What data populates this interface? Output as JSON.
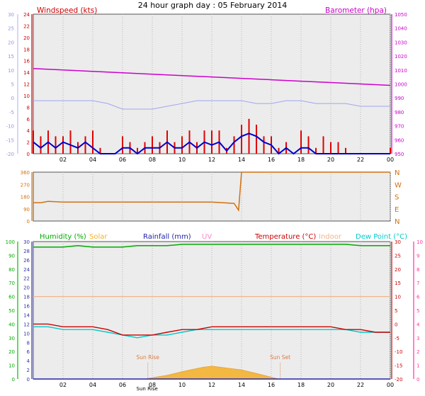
{
  "chart_data": {
    "title": "24 hour graph day : 05 February 2014",
    "x_ticks": [
      "02",
      "04",
      "06",
      "08",
      "10",
      "12",
      "14",
      "16",
      "18",
      "20",
      "22",
      "00"
    ],
    "panels": [
      {
        "id": "wind-baro",
        "type": "line",
        "labels": {
          "windspeed": "Windspeed (kts)",
          "barometer": "Barometer (hpa)"
        },
        "axes": {
          "wind_left": {
            "min": 0,
            "max": 24,
            "ticks": [
              0,
              2,
              4,
              6,
              8,
              10,
              12,
              14,
              16,
              18,
              20,
              22,
              24
            ]
          },
          "temp_outer_left": {
            "min": -20,
            "max": 30,
            "ticks": [
              -20,
              -15,
              -10,
              -5,
              0,
              5,
              10,
              15,
              20,
              25,
              30
            ]
          },
          "baro_right": {
            "min": 950,
            "max": 1050,
            "ticks": [
              950,
              960,
              970,
              980,
              990,
              1000,
              1010,
              1020,
              1030,
              1040,
              1050
            ]
          }
        },
        "series": [
          {
            "name": "Windspeed (kts)",
            "color": "#e00000",
            "style": "bars",
            "x": [
              0,
              0.5,
              1,
              1.5,
              2,
              2.5,
              3,
              3.5,
              4,
              4.5,
              5,
              5.5,
              6,
              6.5,
              7,
              7.5,
              8,
              8.5,
              9,
              9.5,
              10,
              10.5,
              11,
              11.5,
              12,
              12.5,
              13,
              13.5,
              14,
              14.5,
              15,
              15.5,
              16,
              16.5,
              17,
              17.5,
              18,
              18.5,
              19,
              19.5,
              20,
              20.5,
              21,
              21.5,
              22,
              22.5,
              23,
              23.5,
              24
            ],
            "y": [
              4,
              3,
              4,
              3,
              3,
              4,
              2,
              3,
              4,
              1,
              0,
              0,
              3,
              2,
              1,
              2,
              3,
              2,
              4,
              2,
              3,
              4,
              2,
              4,
              4,
              4,
              1,
              3,
              5,
              6,
              5,
              3,
              3,
              1,
              2,
              0,
              4,
              3,
              1,
              3,
              2,
              2,
              1,
              0,
              0,
              0,
              0,
              0,
              1
            ]
          },
          {
            "name": "Wind average",
            "color": "#0000cc",
            "style": "line",
            "x": [
              0,
              0.5,
              1,
              1.5,
              2,
              2.5,
              3,
              3.5,
              4,
              4.5,
              5,
              5.5,
              6,
              6.5,
              7,
              7.5,
              8,
              8.5,
              9,
              9.5,
              10,
              10.5,
              11,
              11.5,
              12,
              12.5,
              13,
              13.5,
              14,
              14.5,
              15,
              15.5,
              16,
              16.5,
              17,
              17.5,
              18,
              18.5,
              19,
              19.5,
              20,
              20.5,
              21,
              21.5,
              22,
              22.5,
              23,
              23.5,
              24
            ],
            "y": [
              2,
              1,
              2,
              1,
              2,
              1.5,
              1,
              2,
              1,
              0,
              0,
              0,
              1,
              1,
              0,
              1,
              1,
              1,
              2,
              1,
              1,
              2,
              1,
              2,
              1.5,
              2,
              0.5,
              2,
              3,
              3.5,
              3,
              2,
              1.5,
              0,
              1,
              0,
              1,
              1,
              0,
              0,
              0,
              0,
              0,
              0,
              0,
              0,
              0,
              0,
              0
            ]
          },
          {
            "name": "Barometer (hpa)",
            "color": "#cc00cc",
            "axis": "baro_right",
            "x": [
              0,
              2,
              4,
              6,
              8,
              10,
              12,
              14,
              16,
              18,
              20,
              22,
              24
            ],
            "y": [
              1011,
              1010,
              1009,
              1008,
              1007,
              1006,
              1005,
              1004,
              1003,
              1002,
              1001,
              1000,
              999
            ]
          },
          {
            "name": "Temperature outer scale",
            "color": "#9fa6ee",
            "axis": "temp_outer_left",
            "x": [
              0,
              1,
              2,
              3,
              4,
              5,
              6,
              7,
              8,
              9,
              10,
              11,
              12,
              13,
              14,
              15,
              16,
              17,
              18,
              19,
              20,
              21,
              22,
              23,
              24
            ],
            "y": [
              -1,
              -1,
              -1,
              -1,
              -1,
              -2,
              -4,
              -4,
              -4,
              -3,
              -2,
              -1,
              -1,
              -1,
              -1,
              -2,
              -2,
              -1,
              -1,
              -2,
              -2,
              -2,
              -3,
              -3,
              -3
            ]
          }
        ]
      },
      {
        "id": "wind-direction",
        "type": "line",
        "axes": {
          "dir_left": {
            "min": 0,
            "max": 360,
            "ticks": [
              0,
              90,
              180,
              270,
              360
            ]
          },
          "compass_right": [
            "N",
            "W",
            "S",
            "E",
            "N"
          ]
        },
        "series": [
          {
            "name": "Wind direction",
            "color": "#d4700e",
            "x": [
              0,
              0.5,
              1,
              2,
              4,
              6,
              8,
              10,
              12,
              13.5,
              13.8,
              14,
              24
            ],
            "y": [
              135,
              135,
              145,
              140,
              140,
              140,
              140,
              140,
              140,
              130,
              80,
              360,
              360
            ]
          }
        ]
      },
      {
        "id": "multi",
        "type": "line",
        "labels": {
          "humidity": "Humidity (%)",
          "solar": "Solar",
          "rainfall": "Rainfall (mm)",
          "uv": "UV",
          "temperature": "Temperature (°C)",
          "indoor": "Indoor",
          "dewpoint": "Dew Point (°C)",
          "sunrise": "Sun Rise",
          "sunset": "Sun Set",
          "sunrise_time": "Sun Rise"
        },
        "axes": {
          "humidity_left": {
            "min": 0,
            "max": 100,
            "ticks": [
              0,
              10,
              20,
              30,
              40,
              50,
              60,
              70,
              80,
              90,
              100
            ]
          },
          "rain_left": {
            "min": 0,
            "max": 30,
            "ticks": [
              0,
              2,
              4,
              6,
              8,
              10,
              12,
              14,
              16,
              18,
              20,
              22,
              24,
              26,
              28,
              30
            ]
          },
          "temp_right": {
            "min": -20,
            "max": 30,
            "ticks": [
              -20,
              -15,
              -10,
              -5,
              0,
              5,
              10,
              15,
              20,
              25,
              30
            ]
          },
          "uv_right": {
            "min": 0,
            "max": 10,
            "ticks": [
              0,
              1,
              2,
              3,
              4,
              5,
              6,
              7,
              8,
              9,
              10
            ]
          }
        },
        "series": [
          {
            "name": "Humidity (%)",
            "color": "#00aa00",
            "axis": "humidity_left",
            "x": [
              0,
              1,
              2,
              3,
              4,
              5,
              6,
              7,
              8,
              9,
              10,
              11,
              12,
              13,
              14,
              15,
              16,
              17,
              18,
              19,
              20,
              21,
              22,
              23,
              24
            ],
            "y": [
              96,
              96,
              96,
              97,
              96,
              96,
              96,
              97,
              97,
              97,
              98,
              98,
              98,
              98,
              98,
              98,
              98,
              98,
              98,
              98,
              98,
              98,
              97,
              97,
              97
            ]
          },
          {
            "name": "Temperature (°C)",
            "color": "#cc0000",
            "axis": "temp_right",
            "x": [
              0,
              1,
              2,
              3,
              4,
              5,
              6,
              7,
              8,
              9,
              10,
              11,
              12,
              13,
              14,
              15,
              16,
              17,
              18,
              19,
              20,
              21,
              22,
              23,
              24
            ],
            "y": [
              0,
              0,
              -1,
              -1,
              -1,
              -2,
              -4,
              -4,
              -4,
              -3,
              -2,
              -2,
              -1,
              -1,
              -1,
              -1,
              -1,
              -1,
              -1,
              -1,
              -1,
              -2,
              -2,
              -3,
              -3
            ]
          },
          {
            "name": "Dew Point (°C)",
            "color": "#00cccc",
            "axis": "temp_right",
            "x": [
              0,
              1,
              2,
              3,
              4,
              5,
              6,
              7,
              8,
              9,
              10,
              11,
              12,
              13,
              14,
              15,
              16,
              17,
              18,
              19,
              20,
              21,
              22,
              23,
              24
            ],
            "y": [
              -1,
              -1,
              -2,
              -2,
              -2,
              -3,
              -4,
              -5,
              -4,
              -4,
              -3,
              -2,
              -2,
              -2,
              -2,
              -2,
              -2,
              -2,
              -2,
              -2,
              -2,
              -2,
              -3,
              -3,
              -3
            ]
          },
          {
            "name": "Indoor",
            "color": "#f2b48c",
            "axis": "temp_right",
            "x": [
              0,
              4,
              8,
              12,
              16,
              20,
              24
            ],
            "y": [
              10,
              10,
              10,
              10,
              10,
              10,
              10
            ]
          },
          {
            "name": "Solar",
            "color": "#f3b330",
            "axis": "rain_left",
            "style": "area",
            "x": [
              7.5,
              8,
              9,
              10,
              11,
              11.5,
              12,
              12.5,
              13,
              14,
              15,
              16,
              16.5
            ],
            "y": [
              0,
              0.3,
              0.8,
              1.6,
              2.3,
              2.6,
              2.8,
              2.6,
              2.4,
              2.0,
              1.2,
              0.4,
              0
            ]
          },
          {
            "name": "Rainfall (mm)",
            "color": "#2222aa",
            "axis": "rain_left",
            "x": [
              0,
              24
            ],
            "y": [
              0,
              0
            ]
          }
        ],
        "markers": {
          "sunrise_hour": 7.7,
          "sunset_hour": 16.6
        }
      }
    ]
  }
}
